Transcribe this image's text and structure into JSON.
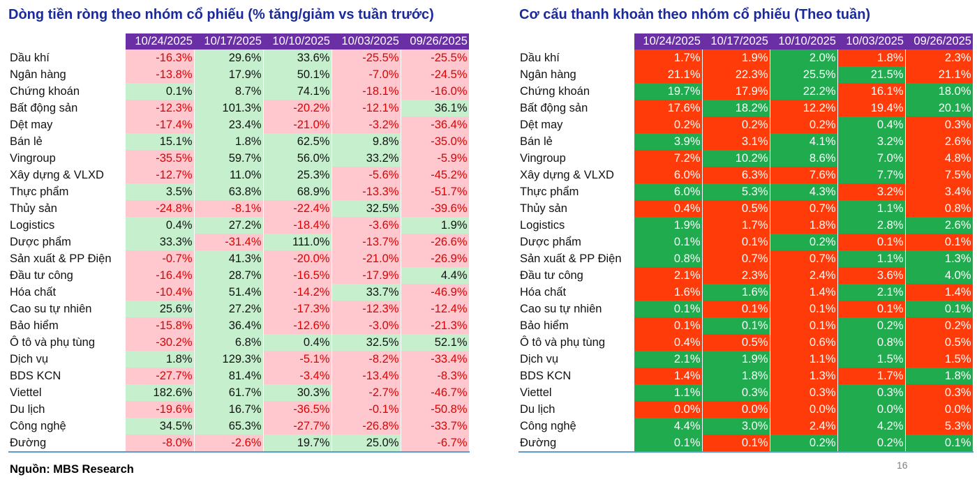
{
  "left_panel": {
    "title": "Dòng tiền ròng theo nhóm cổ phiếu (% tăng/giảm vs tuần trước)",
    "columns": [
      "10/24/2025",
      "10/17/2025",
      "10/10/2025",
      "10/03/2025",
      "09/26/2025"
    ],
    "rows": [
      {
        "label": "Dầu khí",
        "values": [
          "-16.3%",
          "29.6%",
          "33.6%",
          "-25.5%",
          "-25.5%"
        ]
      },
      {
        "label": "Ngân hàng",
        "values": [
          "-13.8%",
          "17.9%",
          "50.1%",
          "-7.0%",
          "-24.5%"
        ]
      },
      {
        "label": "Chứng khoán",
        "values": [
          "0.1%",
          "8.7%",
          "74.1%",
          "-18.1%",
          "-16.0%"
        ]
      },
      {
        "label": "Bất động sản",
        "values": [
          "-12.3%",
          "101.3%",
          "-20.2%",
          "-12.1%",
          "36.1%"
        ]
      },
      {
        "label": "Dệt may",
        "values": [
          "-17.4%",
          "23.4%",
          "-21.0%",
          "-3.2%",
          "-36.4%"
        ]
      },
      {
        "label": "Bán lẻ",
        "values": [
          "15.1%",
          "1.8%",
          "62.5%",
          "9.8%",
          "-35.0%"
        ]
      },
      {
        "label": "Vingroup",
        "values": [
          "-35.5%",
          "59.7%",
          "56.0%",
          "33.2%",
          "-5.9%"
        ]
      },
      {
        "label": "Xây dựng & VLXD",
        "values": [
          "-12.7%",
          "11.0%",
          "25.3%",
          "-5.6%",
          "-45.2%"
        ]
      },
      {
        "label": "Thực phẩm",
        "values": [
          "3.5%",
          "63.8%",
          "68.9%",
          "-13.3%",
          "-51.7%"
        ]
      },
      {
        "label": "Thủy sản",
        "values": [
          "-24.8%",
          "-8.1%",
          "-22.4%",
          "32.5%",
          "-39.6%"
        ]
      },
      {
        "label": "Logistics",
        "values": [
          "0.4%",
          "27.2%",
          "-18.4%",
          "-3.6%",
          "1.9%"
        ]
      },
      {
        "label": "Dược phẩm",
        "values": [
          "33.3%",
          "-31.4%",
          "111.0%",
          "-13.7%",
          "-26.6%"
        ]
      },
      {
        "label": "Sản xuất & PP Điện",
        "values": [
          "-0.7%",
          "41.3%",
          "-20.0%",
          "-21.0%",
          "-26.9%"
        ]
      },
      {
        "label": "Đầu tư công",
        "values": [
          "-16.4%",
          "28.7%",
          "-16.5%",
          "-17.9%",
          "4.4%"
        ]
      },
      {
        "label": "Hóa chất",
        "values": [
          "-10.4%",
          "51.4%",
          "-14.2%",
          "33.7%",
          "-46.9%"
        ]
      },
      {
        "label": "Cao su tự nhiên",
        "values": [
          "25.6%",
          "27.2%",
          "-17.3%",
          "-12.3%",
          "-12.4%"
        ]
      },
      {
        "label": "Bảo hiểm",
        "values": [
          "-15.8%",
          "36.4%",
          "-12.6%",
          "-3.0%",
          "-21.3%"
        ]
      },
      {
        "label": "Ô tô và phụ tùng",
        "values": [
          "-30.2%",
          "6.8%",
          "0.4%",
          "32.5%",
          "52.1%"
        ]
      },
      {
        "label": "Dịch vụ",
        "values": [
          "1.8%",
          "129.3%",
          "-5.1%",
          "-8.2%",
          "-33.4%"
        ]
      },
      {
        "label": "BDS KCN",
        "values": [
          "-27.7%",
          "81.4%",
          "-3.4%",
          "-13.4%",
          "-8.3%"
        ]
      },
      {
        "label": "Viettel",
        "values": [
          "182.6%",
          "61.7%",
          "30.3%",
          "-2.7%",
          "-46.7%"
        ]
      },
      {
        "label": "Du lịch",
        "values": [
          "-19.6%",
          "16.7%",
          "-36.5%",
          "-0.1%",
          "-50.8%"
        ]
      },
      {
        "label": "Công nghệ",
        "values": [
          "34.5%",
          "65.3%",
          "-27.7%",
          "-26.8%",
          "-33.7%"
        ]
      },
      {
        "label": "Đường",
        "values": [
          "-8.0%",
          "-2.6%",
          "19.7%",
          "25.0%",
          "-6.7%"
        ]
      }
    ]
  },
  "right_panel": {
    "title": "Cơ cấu thanh khoản theo nhóm cổ phiếu (Theo tuần)",
    "columns": [
      "10/24/2025",
      "10/17/2025",
      "10/10/2025",
      "10/03/2025",
      "09/26/2025"
    ],
    "rows": [
      {
        "label": "Dầu khí",
        "values": [
          "1.7%",
          "1.9%",
          "2.0%",
          "1.8%",
          "2.3%"
        ]
      },
      {
        "label": "Ngân hàng",
        "values": [
          "21.1%",
          "22.3%",
          "25.5%",
          "21.5%",
          "21.1%"
        ]
      },
      {
        "label": "Chứng khoán",
        "values": [
          "19.7%",
          "17.9%",
          "22.2%",
          "16.1%",
          "18.0%"
        ]
      },
      {
        "label": "Bất động sản",
        "values": [
          "17.6%",
          "18.2%",
          "12.2%",
          "19.4%",
          "20.1%"
        ]
      },
      {
        "label": "Dệt may",
        "values": [
          "0.2%",
          "0.2%",
          "0.2%",
          "0.4%",
          "0.3%"
        ]
      },
      {
        "label": "Bán lẻ",
        "values": [
          "3.9%",
          "3.1%",
          "4.1%",
          "3.2%",
          "2.6%"
        ]
      },
      {
        "label": "Vingroup",
        "values": [
          "7.2%",
          "10.2%",
          "8.6%",
          "7.0%",
          "4.8%"
        ]
      },
      {
        "label": "Xây dựng & VLXD",
        "values": [
          "6.0%",
          "6.3%",
          "7.6%",
          "7.7%",
          "7.5%"
        ]
      },
      {
        "label": "Thực phẩm",
        "values": [
          "6.0%",
          "5.3%",
          "4.3%",
          "3.2%",
          "3.4%"
        ]
      },
      {
        "label": "Thủy sản",
        "values": [
          "0.4%",
          "0.5%",
          "0.7%",
          "1.1%",
          "0.8%"
        ]
      },
      {
        "label": "Logistics",
        "values": [
          "1.9%",
          "1.7%",
          "1.8%",
          "2.8%",
          "2.6%"
        ]
      },
      {
        "label": "Dược phẩm",
        "values": [
          "0.1%",
          "0.1%",
          "0.2%",
          "0.1%",
          "0.1%"
        ]
      },
      {
        "label": "Sản xuất & PP Điện",
        "values": [
          "0.8%",
          "0.7%",
          "0.7%",
          "1.1%",
          "1.3%"
        ]
      },
      {
        "label": "Đầu tư công",
        "values": [
          "2.1%",
          "2.3%",
          "2.4%",
          "3.6%",
          "4.0%"
        ]
      },
      {
        "label": "Hóa chất",
        "values": [
          "1.6%",
          "1.6%",
          "1.4%",
          "2.1%",
          "1.4%"
        ]
      },
      {
        "label": "Cao su tự nhiên",
        "values": [
          "0.1%",
          "0.1%",
          "0.1%",
          "0.1%",
          "0.1%"
        ]
      },
      {
        "label": "Bảo hiểm",
        "values": [
          "0.1%",
          "0.1%",
          "0.1%",
          "0.2%",
          "0.2%"
        ]
      },
      {
        "label": "Ô tô và phụ tùng",
        "values": [
          "0.4%",
          "0.5%",
          "0.6%",
          "0.8%",
          "0.5%"
        ]
      },
      {
        "label": "Dịch vụ",
        "values": [
          "2.1%",
          "1.9%",
          "1.1%",
          "1.5%",
          "1.5%"
        ]
      },
      {
        "label": "BDS KCN",
        "values": [
          "1.4%",
          "1.8%",
          "1.3%",
          "1.7%",
          "1.8%"
        ]
      },
      {
        "label": "Viettel",
        "values": [
          "1.1%",
          "0.3%",
          "0.3%",
          "0.3%",
          "0.3%"
        ]
      },
      {
        "label": "Du lịch",
        "values": [
          "0.0%",
          "0.0%",
          "0.0%",
          "0.0%",
          "0.0%"
        ]
      },
      {
        "label": "Công nghệ",
        "values": [
          "4.4%",
          "3.0%",
          "2.4%",
          "4.2%",
          "5.3%"
        ]
      },
      {
        "label": "Đường",
        "values": [
          "0.1%",
          "0.1%",
          "0.2%",
          "0.2%",
          "0.1%"
        ]
      }
    ],
    "cell_colors": [
      [
        "hi",
        "hi",
        "lo",
        "hi",
        "hi"
      ],
      [
        "hi",
        "hi",
        "lo",
        "lo",
        "hi"
      ],
      [
        "lo",
        "hi",
        "lo",
        "hi",
        "lo"
      ],
      [
        "hi",
        "lo",
        "hi",
        "hi",
        "lo"
      ],
      [
        "hi",
        "hi",
        "hi",
        "lo",
        "hi"
      ],
      [
        "lo",
        "hi",
        "lo",
        "lo",
        "hi"
      ],
      [
        "hi",
        "lo",
        "lo",
        "lo",
        "hi"
      ],
      [
        "hi",
        "hi",
        "hi",
        "lo",
        "hi"
      ],
      [
        "lo",
        "lo",
        "lo",
        "hi",
        "hi"
      ],
      [
        "hi",
        "hi",
        "hi",
        "lo",
        "hi"
      ],
      [
        "lo",
        "hi",
        "hi",
        "lo",
        "lo"
      ],
      [
        "lo",
        "hi",
        "lo",
        "hi",
        "hi"
      ],
      [
        "lo",
        "hi",
        "hi",
        "lo",
        "lo"
      ],
      [
        "hi",
        "hi",
        "hi",
        "hi",
        "lo"
      ],
      [
        "hi",
        "lo",
        "hi",
        "lo",
        "hi"
      ],
      [
        "lo",
        "hi",
        "hi",
        "hi",
        "lo"
      ],
      [
        "hi",
        "lo",
        "hi",
        "lo",
        "hi"
      ],
      [
        "hi",
        "hi",
        "hi",
        "lo",
        "hi"
      ],
      [
        "lo",
        "lo",
        "hi",
        "lo",
        "hi"
      ],
      [
        "hi",
        "lo",
        "hi",
        "hi",
        "lo"
      ],
      [
        "lo",
        "lo",
        "hi",
        "lo",
        "hi"
      ],
      [
        "hi",
        "hi",
        "hi",
        "lo",
        "hi"
      ],
      [
        "lo",
        "lo",
        "hi",
        "lo",
        "hi"
      ],
      [
        "lo",
        "hi",
        "lo",
        "lo",
        "lo"
      ]
    ]
  },
  "colors": {
    "title": "#1a2a9c",
    "header_bg": "#6a2fa5",
    "left_positive_bg": "#c6efce",
    "left_negative_bg": "#ffc7ce",
    "left_negative_text": "#e00000",
    "right_high_bg": "#ff3b0a",
    "right_low_bg": "#1fab4e"
  },
  "footer": {
    "source": "Nguồn: MBS Research",
    "page_number": "16"
  }
}
